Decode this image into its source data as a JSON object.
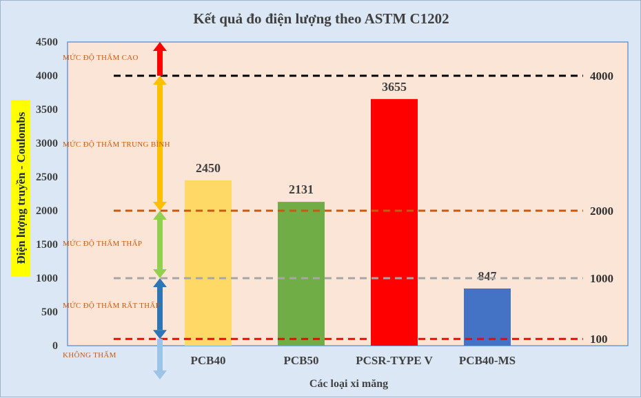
{
  "chart_data": {
    "type": "bar",
    "title": "Kết quả đo điện lượng theo ASTM C1202",
    "xlabel": "Các loại xi măng",
    "ylabel": "Điện lượng truyền - Coulombs",
    "ylim": [
      0,
      4500
    ],
    "yticks": [
      "0",
      "500",
      "1000",
      "1500",
      "2000",
      "2500",
      "3000",
      "3500",
      "4000",
      "4500"
    ],
    "categories": [
      "PCB40",
      "PCB50",
      "PCSR-TYPE V",
      "PCB40-MS"
    ],
    "values": [
      2450,
      2131,
      3655,
      847
    ],
    "bar_colors": [
      "#ffd966",
      "#70ad47",
      "#ff0000",
      "#4472c4"
    ],
    "data_labels": [
      "2450",
      "2131",
      "3655",
      "847"
    ],
    "grid": false,
    "thresholds": [
      {
        "value": 4000,
        "label": "4000",
        "color": "#000000"
      },
      {
        "value": 2000,
        "label": "2000",
        "color": "#c55a11"
      },
      {
        "value": 1000,
        "label": "1000",
        "color": "#a6a6a6"
      },
      {
        "value": 100,
        "label": "100",
        "color": "#ff0000"
      }
    ],
    "zones": [
      {
        "label": "MỨC ĐỘ THẤM CAO",
        "from": 4000,
        "to": 4500,
        "arrow_color": "#ff0000"
      },
      {
        "label": "MỨC ĐỘ THẤM TRUNG BÌNH",
        "from": 2000,
        "to": 4000,
        "arrow_color": "#ffc000"
      },
      {
        "label": "MỨC ĐỘ THẤM THẤP",
        "from": 1000,
        "to": 2000,
        "arrow_color": "#92d050"
      },
      {
        "label": "MỨC ĐỘ THẤM RẤT THẤP",
        "from": 100,
        "to": 1000,
        "arrow_color": "#2e75b6"
      },
      {
        "label": "KHÔNG THẤM",
        "from": -500,
        "to": 100,
        "arrow_color": "#9dc3e6"
      }
    ],
    "plot_background": "#fbe5d6",
    "ylabel_highlight": "#ffff00"
  }
}
